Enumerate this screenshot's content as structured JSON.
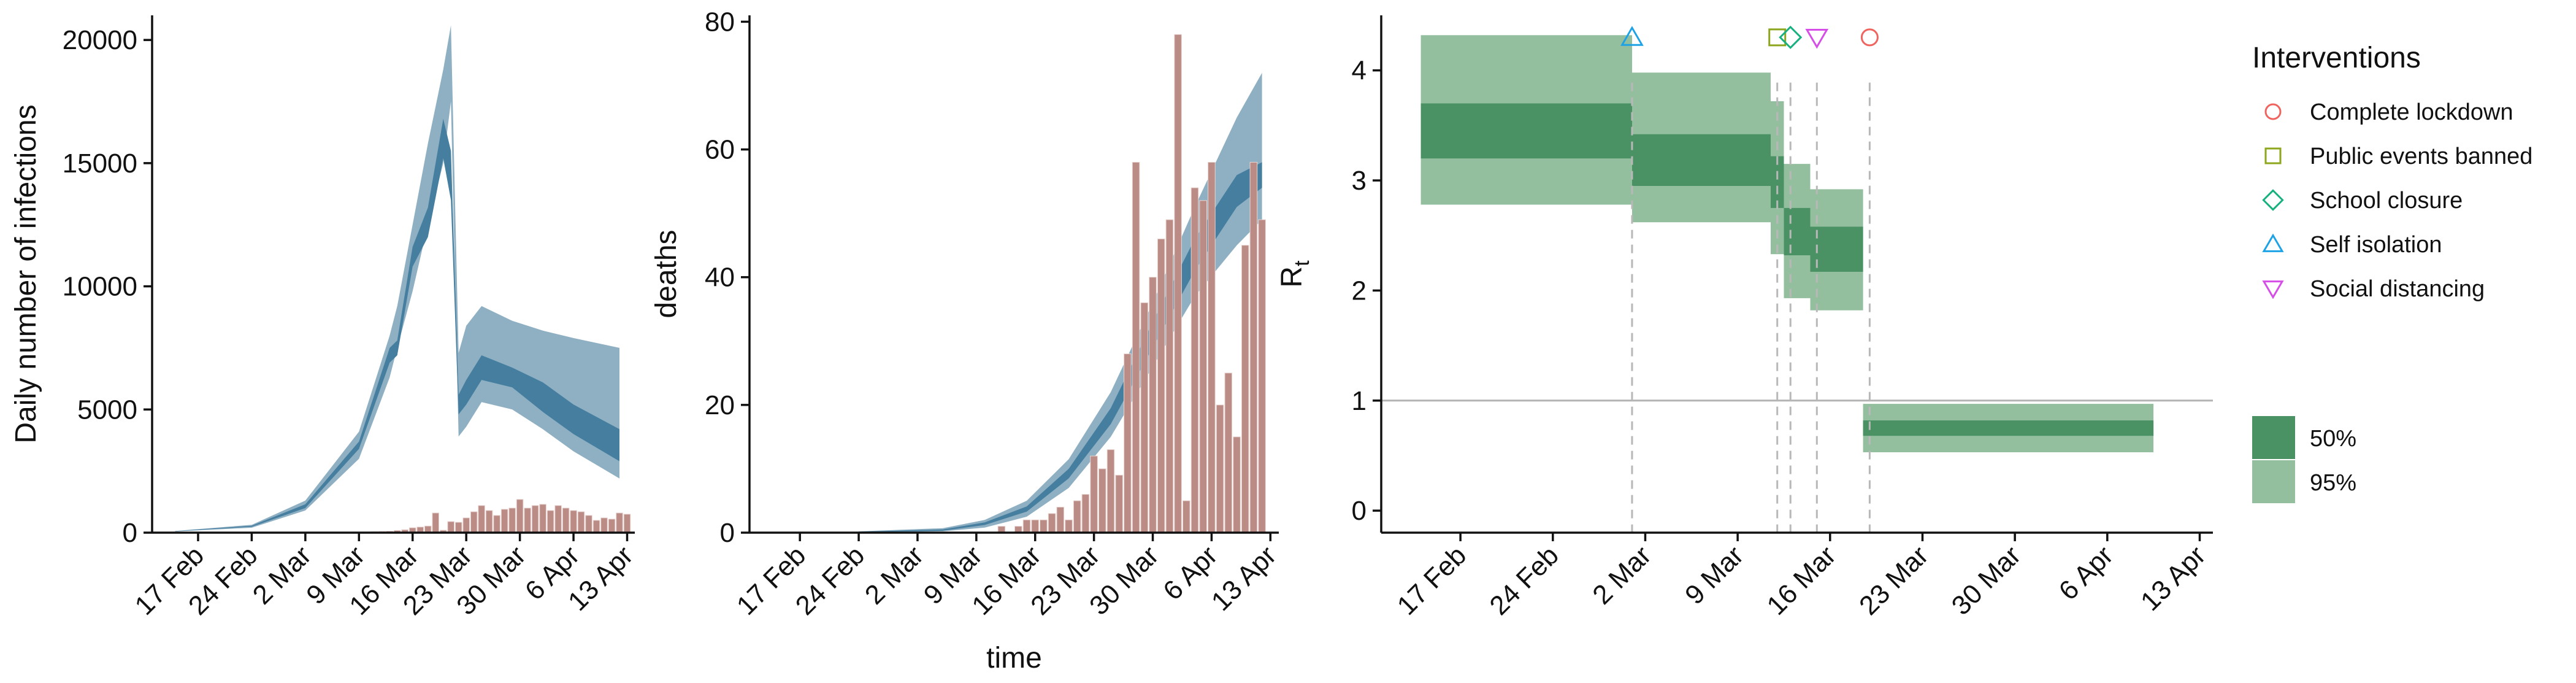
{
  "colors": {
    "infection_ci95": "#8fb0c3",
    "infection_ci50": "#457e9f",
    "observed_bar": "#bb8c85",
    "observed_bar_stroke": "#e8d5d2",
    "rt_ci95": "#93bf9f",
    "rt_ci50": "#4a9264",
    "grid_ref": "#b3b3b3",
    "dash": "#b8b8b8",
    "axis": "#111111"
  },
  "chart_data": [
    {
      "type": "area",
      "id": "infections",
      "ylabel": "Daily number of infections",
      "xlabel": "",
      "ylim": [
        0,
        21000
      ],
      "yticks": [
        0,
        5000,
        10000,
        15000,
        20000
      ],
      "xlim_day": [
        -3,
        60
      ],
      "xticks": [
        {
          "day": 3,
          "label": "17 Feb"
        },
        {
          "day": 10,
          "label": "24 Feb"
        },
        {
          "day": 17,
          "label": "2 Mar"
        },
        {
          "day": 24,
          "label": "9 Mar"
        },
        {
          "day": 31,
          "label": "16 Mar"
        },
        {
          "day": 38,
          "label": "23 Mar"
        },
        {
          "day": 45,
          "label": "30 Mar"
        },
        {
          "day": 52,
          "label": "6 Apr"
        },
        {
          "day": 59,
          "label": "13 Apr"
        }
      ],
      "band_x": [
        0,
        10,
        17,
        24,
        28,
        29,
        31,
        33,
        35,
        36,
        37,
        38,
        40,
        44,
        48,
        52,
        58
      ],
      "ci95_lower": [
        50,
        200,
        900,
        3000,
        6300,
        7500,
        9800,
        12500,
        15000,
        17500,
        3900,
        4300,
        5300,
        5000,
        4200,
        3300,
        2200
      ],
      "ci95_upper": [
        70,
        320,
        1300,
        4100,
        8000,
        9200,
        12500,
        15800,
        18800,
        20600,
        7300,
        8400,
        9200,
        8600,
        8200,
        7900,
        7500
      ],
      "ci50_lower": [
        55,
        240,
        1000,
        3400,
        6900,
        7200,
        10800,
        12000,
        15200,
        13500,
        4800,
        5200,
        6200,
        5900,
        4900,
        4000,
        2900
      ],
      "ci50_upper": [
        65,
        280,
        1150,
        3700,
        7500,
        7800,
        11600,
        13200,
        16800,
        15500,
        5600,
        6200,
        7200,
        6700,
        6100,
        5200,
        4200
      ],
      "bars_day": [
        25,
        26,
        27,
        28,
        29,
        30,
        31,
        32,
        33,
        34,
        35,
        36,
        37,
        38,
        39,
        40,
        41,
        42,
        43,
        44,
        45,
        46,
        47,
        48,
        49,
        50,
        51,
        52,
        53,
        54,
        55,
        56,
        57,
        58,
        59
      ],
      "bars_value": [
        30,
        40,
        50,
        60,
        90,
        120,
        200,
        230,
        270,
        800,
        100,
        450,
        420,
        600,
        850,
        1100,
        900,
        700,
        950,
        1000,
        1350,
        1000,
        1100,
        1150,
        900,
        1100,
        1000,
        900,
        850,
        700,
        500,
        600,
        550,
        800,
        750
      ]
    },
    {
      "type": "area",
      "id": "deaths",
      "ylabel": "deaths",
      "xlabel": "time",
      "ylim": [
        0,
        81
      ],
      "yticks": [
        0,
        20,
        40,
        60,
        80
      ],
      "xlim_day": [
        -3,
        60
      ],
      "xticks": [
        {
          "day": 3,
          "label": "17 Feb"
        },
        {
          "day": 10,
          "label": "24 Feb"
        },
        {
          "day": 17,
          "label": "2 Mar"
        },
        {
          "day": 24,
          "label": "9 Mar"
        },
        {
          "day": 31,
          "label": "16 Mar"
        },
        {
          "day": 38,
          "label": "23 Mar"
        },
        {
          "day": 45,
          "label": "30 Mar"
        },
        {
          "day": 52,
          "label": "6 Apr"
        },
        {
          "day": 59,
          "label": "13 Apr"
        }
      ],
      "band_x": [
        10,
        20,
        25,
        30,
        35,
        40,
        45,
        50,
        55,
        58
      ],
      "ci95_lower": [
        0,
        0.2,
        0.8,
        2.5,
        7,
        15,
        26,
        37,
        45,
        49
      ],
      "ci95_upper": [
        0.2,
        0.7,
        2.0,
        5.0,
        11.5,
        22,
        36,
        51,
        65,
        72
      ],
      "ci50_lower": [
        0.05,
        0.3,
        1.2,
        3.3,
        8.5,
        17,
        29,
        41,
        51,
        54
      ],
      "ci50_upper": [
        0.15,
        0.5,
        1.6,
        4.1,
        10,
        19.5,
        33,
        46,
        56,
        58
      ],
      "bars_day": [
        27,
        29,
        30,
        31,
        32,
        33,
        34,
        35,
        36,
        37,
        38,
        39,
        40,
        41,
        42,
        43,
        44,
        45,
        46,
        47,
        48,
        49,
        50,
        51,
        52,
        53,
        54,
        55,
        56,
        57,
        58
      ],
      "bars_value": [
        1,
        1,
        2,
        2,
        2,
        3,
        4,
        2,
        5,
        6,
        12,
        10,
        13,
        9,
        28,
        58,
        36,
        40,
        46,
        49,
        78,
        5,
        54,
        52,
        58,
        20,
        25,
        15,
        45,
        58,
        49
      ]
    },
    {
      "type": "step",
      "id": "rt",
      "ylabel": "R",
      "ylabel_sub": "t",
      "xlabel": "",
      "ylim": [
        -0.2,
        4.5
      ],
      "yticks": [
        0,
        1,
        2,
        3,
        4
      ],
      "xlim_day": [
        -3,
        60
      ],
      "xticks": [
        {
          "day": 3,
          "label": "17 Feb"
        },
        {
          "day": 10,
          "label": "24 Feb"
        },
        {
          "day": 17,
          "label": "2 Mar"
        },
        {
          "day": 24,
          "label": "9 Mar"
        },
        {
          "day": 31,
          "label": "16 Mar"
        },
        {
          "day": 38,
          "label": "23 Mar"
        },
        {
          "day": 45,
          "label": "30 Mar"
        },
        {
          "day": 52,
          "label": "6 Apr"
        },
        {
          "day": 59,
          "label": "13 Apr"
        }
      ],
      "reference_line": 1,
      "segments": [
        {
          "start": 0,
          "end": 16,
          "ci95": [
            2.78,
            4.32
          ],
          "ci50": [
            3.2,
            3.7
          ]
        },
        {
          "start": 16,
          "end": 26.5,
          "ci95": [
            2.62,
            3.98
          ],
          "ci50": [
            2.95,
            3.42
          ]
        },
        {
          "start": 26.5,
          "end": 27.5,
          "ci95": [
            2.33,
            3.72
          ],
          "ci50": [
            2.75,
            3.22
          ]
        },
        {
          "start": 27.5,
          "end": 29.5,
          "ci95": [
            1.93,
            3.15
          ],
          "ci50": [
            2.32,
            2.75
          ]
        },
        {
          "start": 29.5,
          "end": 33.5,
          "ci95": [
            1.82,
            2.92
          ],
          "ci50": [
            2.17,
            2.58
          ]
        },
        {
          "start": 33.5,
          "end": 55.5,
          "ci95": [
            0.53,
            0.97
          ],
          "ci50": [
            0.68,
            0.82
          ]
        }
      ],
      "interventions": [
        {
          "name": "Self isolation",
          "day": 16,
          "shape": "triangle-up",
          "color": "#1ea2e6"
        },
        {
          "name": "Public events banned",
          "day": 27,
          "shape": "square",
          "color": "#8ca61e"
        },
        {
          "name": "School closure",
          "day": 28,
          "shape": "diamond",
          "color": "#18b07f"
        },
        {
          "name": "Social distancing",
          "day": 30,
          "shape": "triangle-down",
          "color": "#d64de8"
        },
        {
          "name": "Complete lockdown",
          "day": 34,
          "shape": "circle",
          "color": "#f0645f"
        }
      ],
      "legend": {
        "title": "Interventions",
        "items": [
          {
            "label": "Complete lockdown",
            "shape": "circle",
            "color": "#f0645f"
          },
          {
            "label": "Public events banned",
            "shape": "square",
            "color": "#8ca61e"
          },
          {
            "label": "School closure",
            "shape": "diamond",
            "color": "#18b07f"
          },
          {
            "label": "Self isolation",
            "shape": "triangle-up",
            "color": "#1ea2e6"
          },
          {
            "label": "Social distancing",
            "shape": "triangle-down",
            "color": "#d64de8"
          }
        ],
        "ci_items": [
          {
            "label": "50%",
            "color": "#4a9264"
          },
          {
            "label": "95%",
            "color": "#93bf9f"
          }
        ]
      }
    }
  ]
}
